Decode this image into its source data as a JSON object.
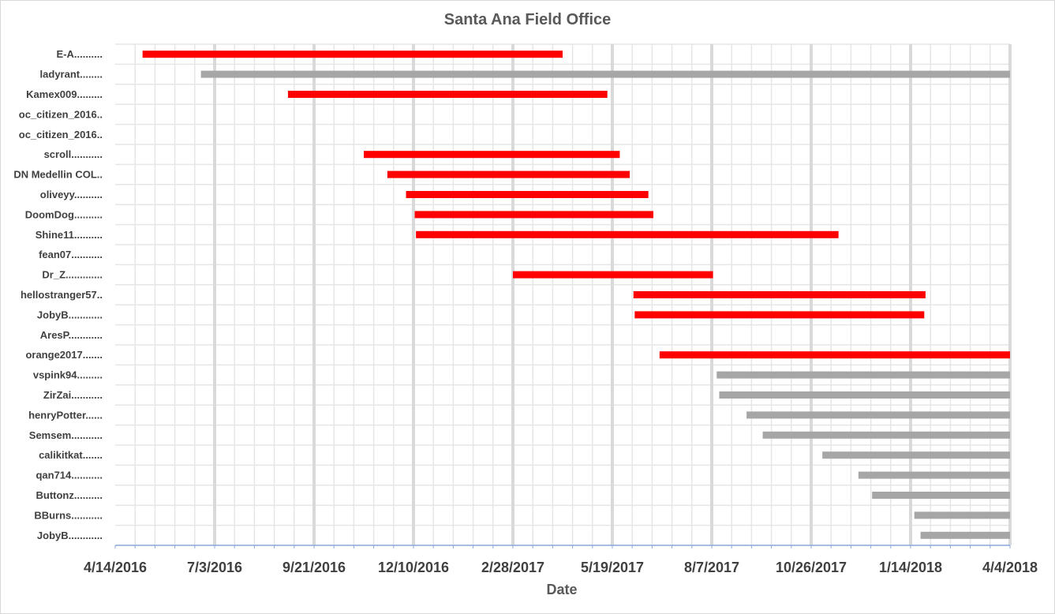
{
  "chart_data": {
    "type": "gantt-bar",
    "title": "Santa Ana Field Office",
    "xlabel": "Date",
    "ylabel": "",
    "x_axis_type": "date",
    "xlim": [
      "2016-04-14",
      "2018-04-04"
    ],
    "x_ticks": [
      "4/14/2016",
      "7/3/2016",
      "9/21/2016",
      "12/10/2016",
      "2/28/2017",
      "5/19/2017",
      "8/7/2017",
      "10/26/2017",
      "1/14/2018",
      "4/4/2018"
    ],
    "grid": true,
    "colors": {
      "red": "#ff0000",
      "gray": "#a6a6a6"
    },
    "rows": [
      {
        "label": "E-A..........",
        "start": "2016-05-06",
        "end": "2017-04-09",
        "color": "red"
      },
      {
        "label": "ladyrant........",
        "start": "2016-06-22",
        "end": "2018-04-04",
        "color": "gray"
      },
      {
        "label": "Kamex009.........",
        "start": "2016-08-31",
        "end": "2017-05-15",
        "color": "red"
      },
      {
        "label": "oc_citizen_2016..",
        "start": null,
        "end": null,
        "color": ""
      },
      {
        "label": "oc_citizen_2016..",
        "start": null,
        "end": null,
        "color": ""
      },
      {
        "label": "scroll...........",
        "start": "2016-10-31",
        "end": "2017-05-25",
        "color": "red"
      },
      {
        "label": "DN Medellin COL..",
        "start": "2016-11-19",
        "end": "2017-06-02",
        "color": "red"
      },
      {
        "label": "oliveyy..........",
        "start": "2016-12-04",
        "end": "2017-06-17",
        "color": "red"
      },
      {
        "label": "DoomDog..........",
        "start": "2016-12-11",
        "end": "2017-06-21",
        "color": "red"
      },
      {
        "label": "Shine11..........",
        "start": "2016-12-12",
        "end": "2017-11-17",
        "color": "red"
      },
      {
        "label": "fean07...........",
        "start": null,
        "end": null,
        "color": ""
      },
      {
        "label": "Dr_Z.............",
        "start": "2017-02-28",
        "end": "2017-08-08",
        "color": "red"
      },
      {
        "label": "hellostranger57..",
        "start": "2017-06-05",
        "end": "2018-01-26",
        "color": "red"
      },
      {
        "label": "JobyB............",
        "start": "2017-06-06",
        "end": "2018-01-25",
        "color": "red"
      },
      {
        "label": "AresP............",
        "start": null,
        "end": null,
        "color": ""
      },
      {
        "label": "orange2017.......",
        "start": "2017-06-26",
        "end": "2018-04-04",
        "color": "red"
      },
      {
        "label": "vspink94.........",
        "start": "2017-08-11",
        "end": "2018-04-04",
        "color": "gray"
      },
      {
        "label": "ZirZai...........",
        "start": "2017-08-13",
        "end": "2018-04-04",
        "color": "gray"
      },
      {
        "label": "henryPotter......",
        "start": "2017-09-04",
        "end": "2018-04-04",
        "color": "gray"
      },
      {
        "label": "Semsem...........",
        "start": "2017-09-17",
        "end": "2018-04-04",
        "color": "gray"
      },
      {
        "label": "calikitkat.......",
        "start": "2017-11-04",
        "end": "2018-04-04",
        "color": "gray"
      },
      {
        "label": "qan714...........",
        "start": "2017-12-03",
        "end": "2018-04-04",
        "color": "gray"
      },
      {
        "label": "Buttonz..........",
        "start": "2017-12-14",
        "end": "2018-04-04",
        "color": "gray"
      },
      {
        "label": "BBurns...........",
        "start": "2018-01-17",
        "end": "2018-04-04",
        "color": "gray"
      },
      {
        "label": "JobyB............",
        "start": "2018-01-22",
        "end": "2018-04-04",
        "color": "gray"
      }
    ]
  }
}
